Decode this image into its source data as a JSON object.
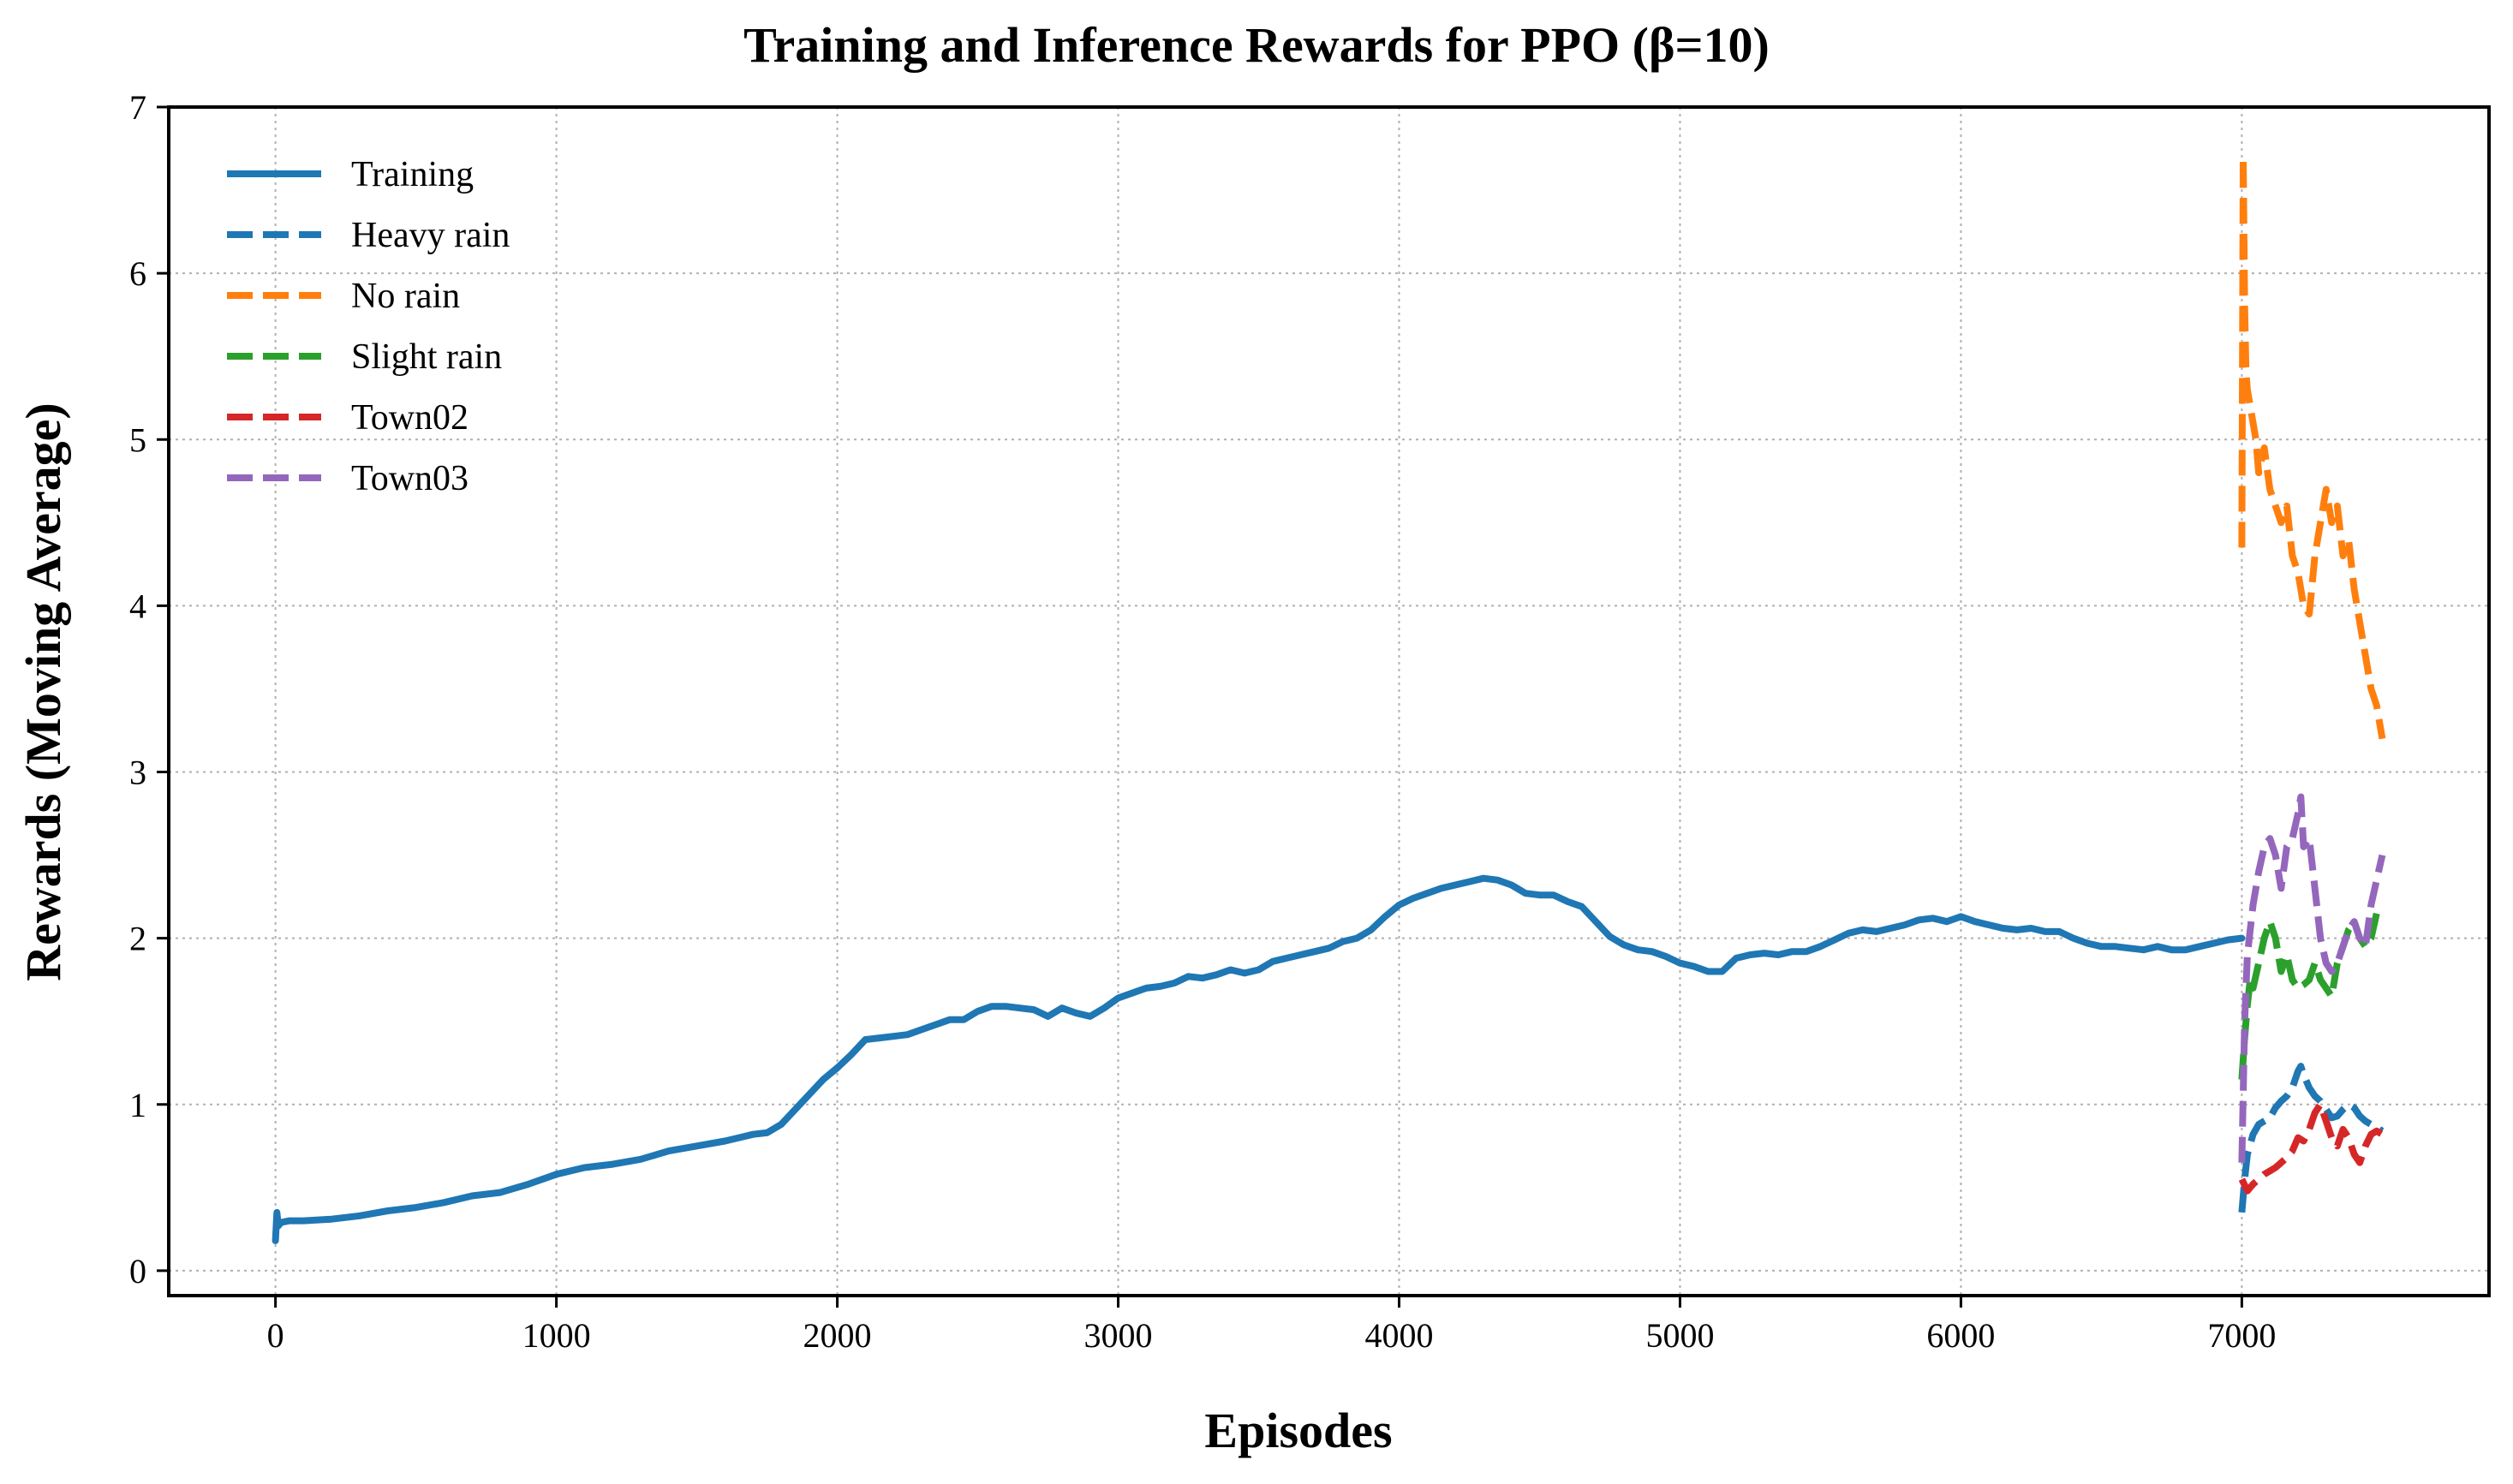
{
  "chart_data": {
    "type": "line",
    "title": "Training and Inference Rewards for PPO (β=10)",
    "xlabel": "Episodes",
    "ylabel": "Rewards (Moving Average)",
    "xlim": [
      -380,
      7880
    ],
    "ylim": [
      -0.15,
      7.0
    ],
    "xticks": [
      0,
      1000,
      2000,
      3000,
      4000,
      5000,
      6000,
      7000
    ],
    "yticks": [
      0,
      1,
      2,
      3,
      4,
      5,
      6,
      7
    ],
    "grid": true,
    "legend_position": "top-left",
    "series": [
      {
        "name": "Training",
        "color": "#1f77b4",
        "style": "solid",
        "x": [
          0,
          5,
          10,
          20,
          50,
          100,
          200,
          300,
          400,
          500,
          600,
          700,
          800,
          900,
          1000,
          1100,
          1200,
          1300,
          1400,
          1500,
          1600,
          1650,
          1700,
          1750,
          1800,
          1850,
          1900,
          1950,
          2000,
          2050,
          2100,
          2150,
          2200,
          2250,
          2300,
          2350,
          2400,
          2450,
          2500,
          2550,
          2600,
          2650,
          2700,
          2750,
          2800,
          2850,
          2900,
          2950,
          3000,
          3050,
          3100,
          3150,
          3200,
          3250,
          3300,
          3350,
          3400,
          3450,
          3500,
          3550,
          3600,
          3650,
          3700,
          3750,
          3800,
          3850,
          3900,
          3950,
          4000,
          4050,
          4100,
          4150,
          4200,
          4250,
          4300,
          4350,
          4400,
          4450,
          4500,
          4550,
          4600,
          4650,
          4700,
          4750,
          4800,
          4850,
          4900,
          4950,
          5000,
          5050,
          5100,
          5150,
          5200,
          5250,
          5300,
          5350,
          5400,
          5450,
          5500,
          5550,
          5600,
          5650,
          5700,
          5750,
          5800,
          5850,
          5900,
          5950,
          6000,
          6050,
          6100,
          6150,
          6200,
          6250,
          6300,
          6350,
          6400,
          6450,
          6500,
          6550,
          6600,
          6650,
          6700,
          6750,
          6800,
          6850,
          6900,
          6950,
          7000
        ],
        "values": [
          0.18,
          0.35,
          0.27,
          0.29,
          0.3,
          0.3,
          0.31,
          0.33,
          0.36,
          0.38,
          0.41,
          0.45,
          0.47,
          0.52,
          0.58,
          0.62,
          0.64,
          0.67,
          0.72,
          0.75,
          0.78,
          0.8,
          0.82,
          0.83,
          0.88,
          0.97,
          1.06,
          1.15,
          1.22,
          1.3,
          1.39,
          1.4,
          1.41,
          1.42,
          1.45,
          1.48,
          1.51,
          1.51,
          1.56,
          1.59,
          1.59,
          1.58,
          1.57,
          1.53,
          1.58,
          1.55,
          1.53,
          1.58,
          1.64,
          1.67,
          1.7,
          1.71,
          1.73,
          1.77,
          1.76,
          1.78,
          1.81,
          1.79,
          1.81,
          1.86,
          1.88,
          1.9,
          1.92,
          1.94,
          1.98,
          2.0,
          2.05,
          2.13,
          2.2,
          2.24,
          2.27,
          2.3,
          2.32,
          2.34,
          2.36,
          2.35,
          2.32,
          2.27,
          2.26,
          2.26,
          2.22,
          2.19,
          2.1,
          2.01,
          1.96,
          1.93,
          1.92,
          1.89,
          1.85,
          1.83,
          1.8,
          1.8,
          1.88,
          1.9,
          1.91,
          1.9,
          1.92,
          1.92,
          1.95,
          1.99,
          2.03,
          2.05,
          2.04,
          2.06,
          2.08,
          2.11,
          2.12,
          2.1,
          2.13,
          2.1,
          2.08,
          2.06,
          2.05,
          2.06,
          2.04,
          2.04,
          2.0,
          1.97,
          1.95,
          1.95,
          1.94,
          1.93,
          1.95,
          1.93,
          1.93,
          1.95,
          1.97,
          1.99,
          2.0
        ]
      },
      {
        "name": "Heavy rain",
        "color": "#1f77b4",
        "style": "dashed",
        "x": [
          7000,
          7010,
          7020,
          7040,
          7060,
          7080,
          7100,
          7120,
          7140,
          7160,
          7180,
          7200,
          7210,
          7220,
          7240,
          7260,
          7280,
          7300,
          7320,
          7340,
          7360,
          7380,
          7400,
          7420,
          7440,
          7460,
          7480,
          7500
        ],
        "values": [
          0.35,
          0.55,
          0.7,
          0.82,
          0.88,
          0.9,
          0.92,
          0.98,
          1.02,
          1.05,
          1.1,
          1.2,
          1.23,
          1.18,
          1.1,
          1.05,
          1.02,
          0.97,
          0.92,
          0.93,
          0.97,
          1.0,
          0.98,
          0.93,
          0.9,
          0.88,
          0.86,
          0.84
        ]
      },
      {
        "name": "No rain",
        "color": "#ff7f0e",
        "style": "dashed",
        "x": [
          7000,
          7005,
          7010,
          7015,
          7020,
          7030,
          7040,
          7050,
          7060,
          7080,
          7100,
          7120,
          7140,
          7160,
          7180,
          7200,
          7220,
          7240,
          7260,
          7280,
          7300,
          7320,
          7340,
          7360,
          7380,
          7400,
          7420,
          7440,
          7460,
          7480,
          7500
        ],
        "values": [
          4.35,
          6.7,
          5.8,
          5.4,
          5.3,
          5.2,
          5.1,
          5.0,
          4.8,
          4.95,
          4.7,
          4.6,
          4.5,
          4.6,
          4.3,
          4.2,
          4.0,
          3.95,
          4.3,
          4.5,
          4.7,
          4.5,
          4.6,
          4.3,
          4.4,
          4.1,
          3.9,
          3.7,
          3.5,
          3.4,
          3.2
        ]
      },
      {
        "name": "Slight rain",
        "color": "#2ca02c",
        "style": "dashed",
        "x": [
          7000,
          7010,
          7020,
          7030,
          7040,
          7060,
          7080,
          7100,
          7120,
          7140,
          7160,
          7180,
          7200,
          7220,
          7240,
          7260,
          7280,
          7300,
          7320,
          7340,
          7360,
          7380,
          7400,
          7420,
          7440,
          7460,
          7480,
          7500
        ],
        "values": [
          1.15,
          1.4,
          1.6,
          1.75,
          1.7,
          1.85,
          2.0,
          2.1,
          2.0,
          1.8,
          1.9,
          1.75,
          1.7,
          1.72,
          1.75,
          1.85,
          1.75,
          1.7,
          1.65,
          1.85,
          1.95,
          2.05,
          2.1,
          2.0,
          1.95,
          2.0,
          2.15,
          2.2
        ]
      },
      {
        "name": "Town02",
        "color": "#d62728",
        "style": "dashed",
        "x": [
          7000,
          7020,
          7040,
          7060,
          7080,
          7100,
          7120,
          7140,
          7160,
          7180,
          7200,
          7220,
          7240,
          7260,
          7280,
          7300,
          7320,
          7340,
          7360,
          7380,
          7400,
          7420,
          7440,
          7460,
          7480,
          7500
        ],
        "values": [
          0.55,
          0.48,
          0.52,
          0.55,
          0.58,
          0.6,
          0.62,
          0.65,
          0.68,
          0.72,
          0.8,
          0.78,
          0.85,
          0.95,
          1.0,
          0.9,
          0.8,
          0.75,
          0.85,
          0.8,
          0.7,
          0.65,
          0.75,
          0.82,
          0.84,
          0.82
        ]
      },
      {
        "name": "Town03",
        "color": "#9467bd",
        "style": "dashed",
        "x": [
          7000,
          7010,
          7020,
          7040,
          7060,
          7080,
          7100,
          7120,
          7140,
          7160,
          7180,
          7200,
          7210,
          7220,
          7240,
          7260,
          7280,
          7300,
          7320,
          7340,
          7360,
          7380,
          7400,
          7420,
          7440,
          7460,
          7480,
          7500
        ],
        "values": [
          0.65,
          1.5,
          1.9,
          2.2,
          2.4,
          2.55,
          2.6,
          2.5,
          2.3,
          2.55,
          2.6,
          2.75,
          2.85,
          2.55,
          2.6,
          2.3,
          2.0,
          1.85,
          1.8,
          1.85,
          1.95,
          2.05,
          2.1,
          2.0,
          1.95,
          2.2,
          2.35,
          2.5
        ]
      }
    ]
  }
}
